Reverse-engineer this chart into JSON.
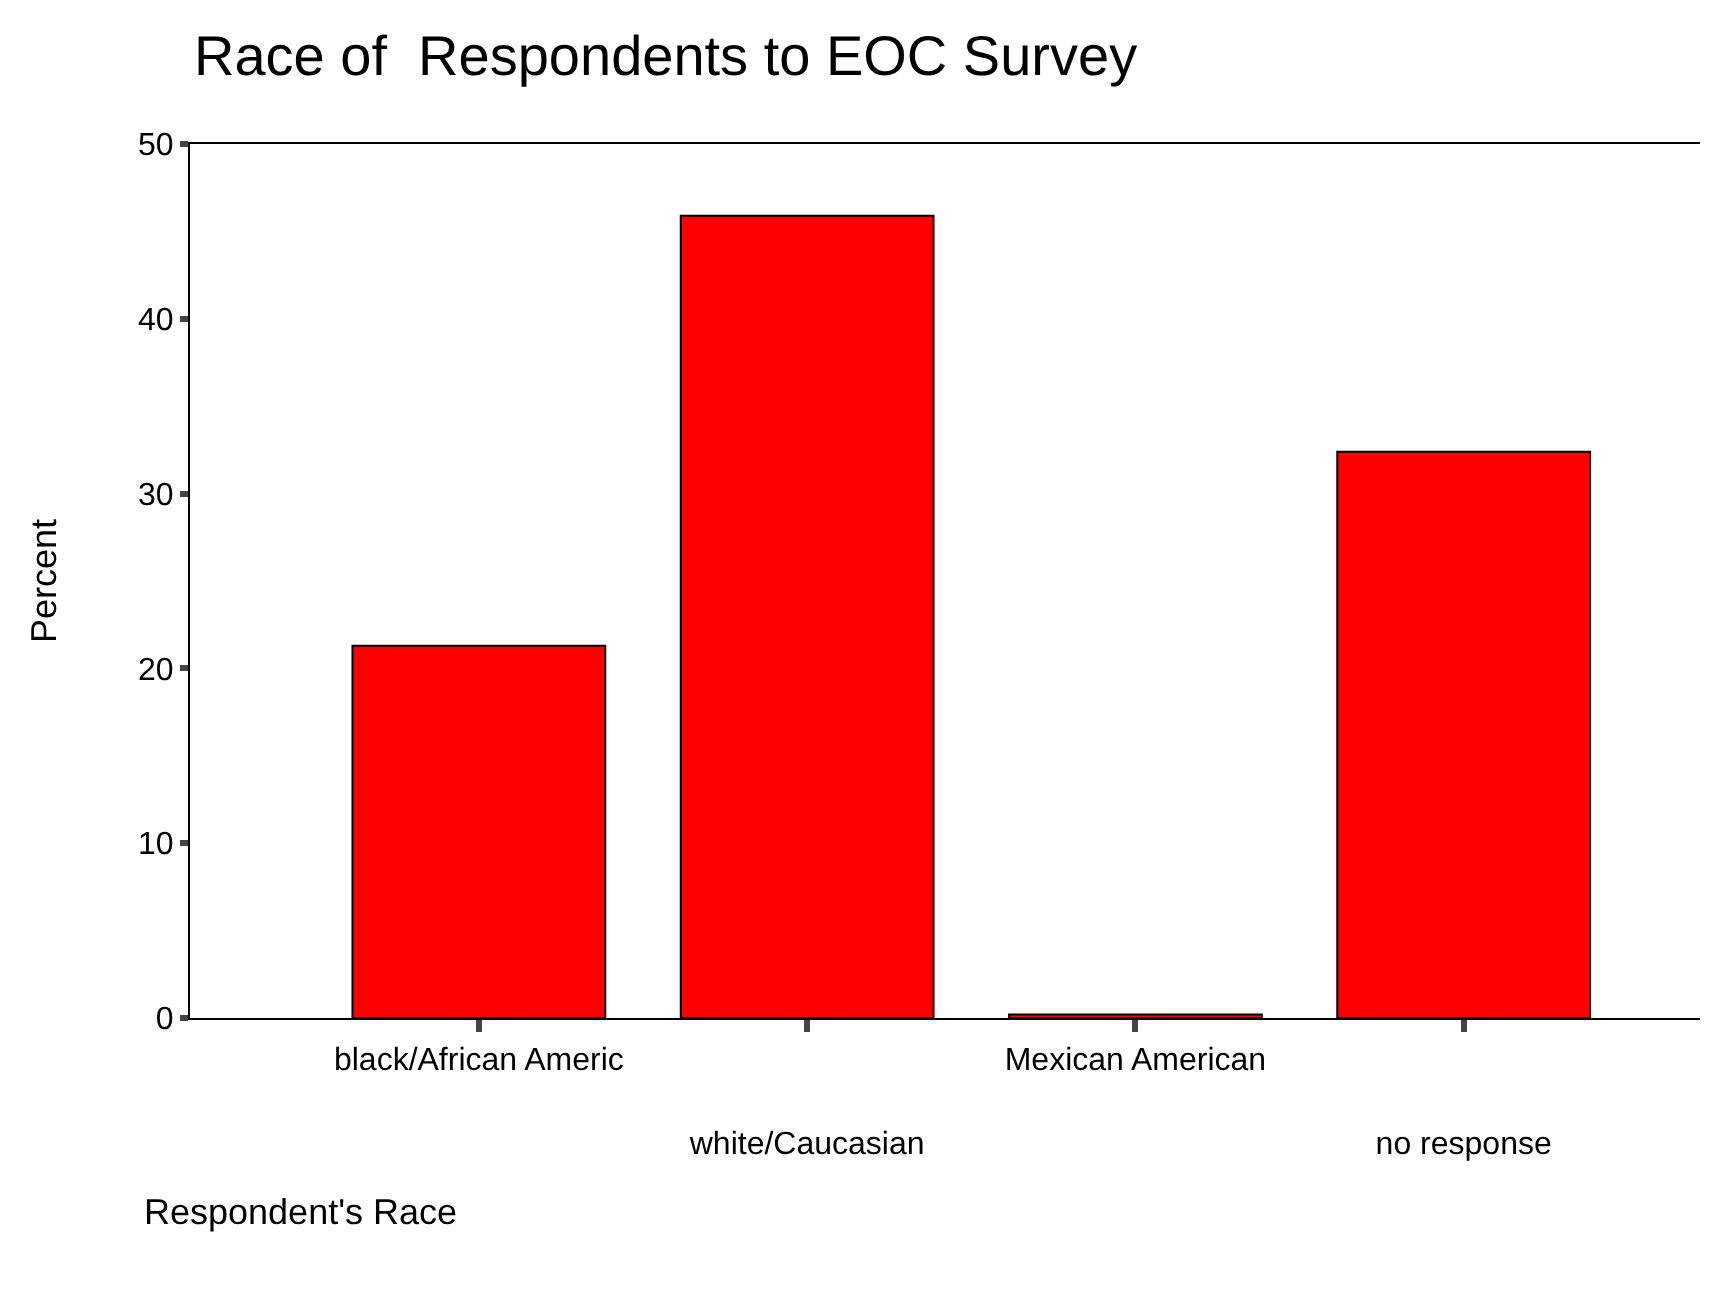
{
  "chart_data": {
    "type": "bar",
    "title": "Race of  Respondents to EOC Survey",
    "xlabel": "Respondent's Race",
    "ylabel": "Percent",
    "categories": [
      "black/African Americ",
      "white/Caucasian",
      "Mexican American",
      "no response"
    ],
    "values": [
      21.3,
      45.9,
      0.2,
      32.4
    ],
    "color": "#ff0000",
    "ylim": [
      0,
      50
    ],
    "yticks": [
      0,
      10,
      20,
      30,
      40,
      50
    ],
    "legend": false
  }
}
